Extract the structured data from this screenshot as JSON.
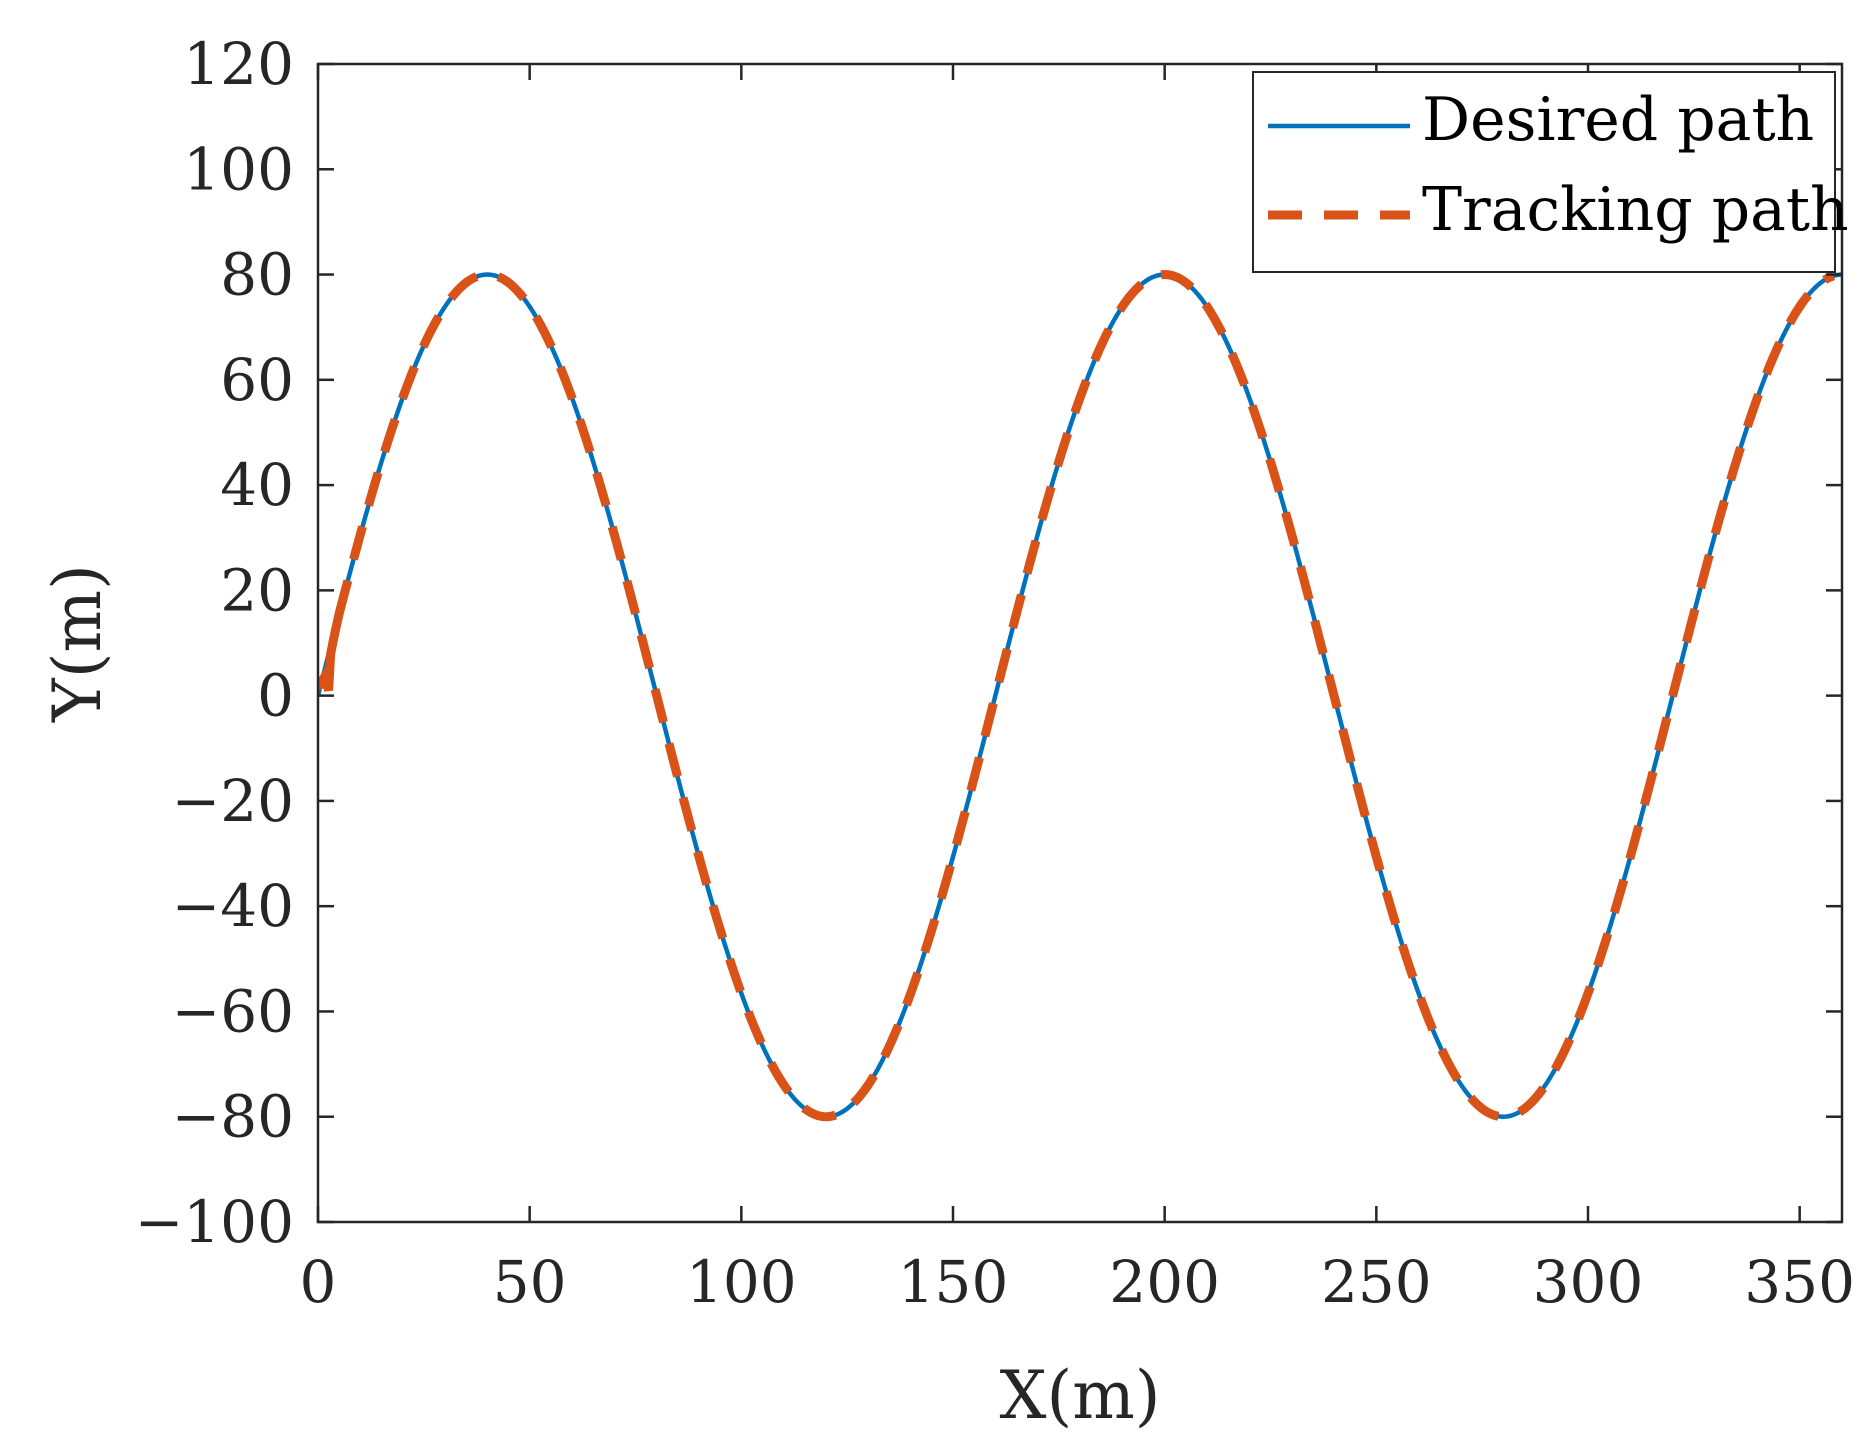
{
  "chart_data": {
    "type": "line",
    "title": "",
    "xlabel": "X(m)",
    "ylabel": "Y(m)",
    "xlim": [
      0,
      360
    ],
    "ylim": [
      -100,
      120
    ],
    "xticks": [
      0,
      50,
      100,
      150,
      200,
      250,
      300,
      350
    ],
    "yticks": [
      -100,
      -80,
      -60,
      -40,
      -20,
      0,
      20,
      40,
      60,
      80,
      100,
      120
    ],
    "xtick_labels": [
      "0",
      "50",
      "100",
      "150",
      "200",
      "250",
      "300",
      "350"
    ],
    "ytick_labels": [
      "−100",
      "−80",
      "−60",
      "−40",
      "−20",
      "0",
      "20",
      "40",
      "60",
      "80",
      "100",
      "120"
    ],
    "grid": false,
    "legend_position": "top-right",
    "series": [
      {
        "name": "Desired path",
        "style": "solid",
        "color": "#0072BD",
        "function": "80*sin(2*pi*x/160)",
        "x": [
          0,
          10,
          20,
          30,
          40,
          50,
          60,
          70,
          80,
          90,
          100,
          110,
          120,
          130,
          140,
          150,
          160,
          170,
          180,
          190,
          200,
          210,
          220,
          230,
          240,
          250,
          260,
          270,
          280,
          290,
          300,
          310,
          320,
          330,
          340,
          350,
          360
        ],
        "y": [
          0,
          30.6,
          56.6,
          73.9,
          80,
          73.9,
          56.6,
          30.6,
          0,
          -30.6,
          -56.6,
          -73.9,
          -80,
          -73.9,
          -56.6,
          -30.6,
          0,
          30.6,
          56.6,
          73.9,
          80,
          73.9,
          56.6,
          30.6,
          0,
          -30.6,
          -56.6,
          -73.9,
          -80,
          -73.9,
          -56.6,
          -30.6,
          0,
          30.6,
          56.6,
          73.9,
          80
        ]
      },
      {
        "name": "Tracking path",
        "style": "dashed",
        "color": "#D95319",
        "start_points": [
          [
            0.5,
            2
          ],
          [
            1.5,
            3.5
          ],
          [
            2.5,
            1
          ],
          [
            3,
            8
          ],
          [
            4,
            12
          ]
        ],
        "x": [
          5,
          10,
          20,
          30,
          40,
          50,
          60,
          70,
          80,
          90,
          100,
          110,
          120,
          130,
          140,
          150,
          160,
          170,
          180,
          190,
          200,
          210,
          220,
          230,
          240,
          250,
          260,
          270,
          280,
          290,
          300,
          310,
          320,
          330,
          340,
          350,
          358
        ],
        "y": [
          15.5,
          30.6,
          56.6,
          73.9,
          80,
          73.9,
          56.6,
          30.6,
          0,
          -30.6,
          -56.6,
          -73.9,
          -80,
          -73.9,
          -56.6,
          -30.6,
          0,
          30.6,
          56.6,
          73.9,
          80,
          73.9,
          56.6,
          30.6,
          0,
          -30.6,
          -56.6,
          -73.9,
          -80,
          -73.9,
          -56.6,
          -30.6,
          0,
          30.6,
          56.6,
          73.9,
          79.6
        ]
      }
    ]
  }
}
